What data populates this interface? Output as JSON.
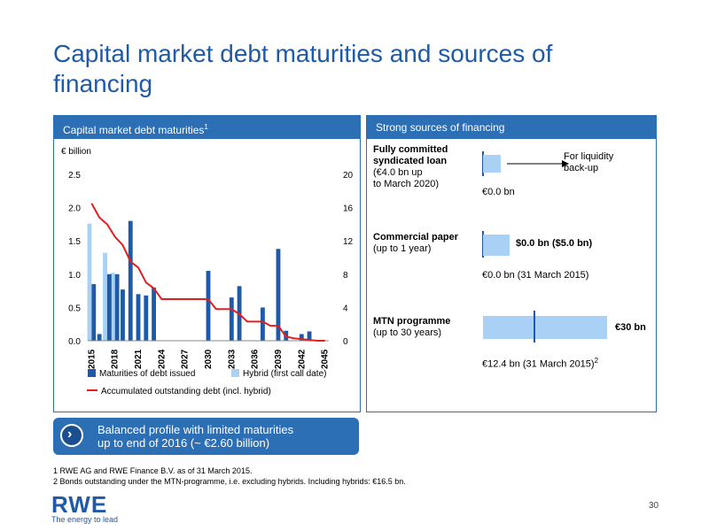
{
  "title": "Capital market debt maturities and sources of financing",
  "left_panel": {
    "header": "Capital market debt maturities",
    "header_sup": "1"
  },
  "right_panel": {
    "header": "Strong sources of financing",
    "items": [
      {
        "name": "Fully committed syndicated loan",
        "name_lines": [
          "Fully committed",
          "syndicated loan"
        ],
        "detail_lines": [
          "(€4.0 bn up",
          "to March 2020)"
        ],
        "note": "€0.0 bn",
        "arrow_label_lines": [
          "For liquidity",
          "back-up"
        ]
      },
      {
        "name": "Commercial paper",
        "name_lines": [
          "Commercial paper"
        ],
        "detail_lines": [
          "(up to 1 year)"
        ],
        "bar_label": "$0.0 bn ($5.0 bn)",
        "note": "€0.0 bn (31 March 2015)"
      },
      {
        "name": "MTN programme",
        "name_lines": [
          "MTN programme"
        ],
        "detail_lines": [
          "(up to 30 years)"
        ],
        "bar_label": "€30 bn",
        "note": "€12.4 bn (31 March 2015)",
        "note_sup": "2"
      }
    ]
  },
  "callout": {
    "lines": [
      "Balanced profile with limited maturities",
      "up to end of 2016 (~ €2.60 billion)"
    ]
  },
  "footnotes": [
    "1  RWE AG and RWE Finance B.V. as of 31 March 2015.",
    "2  Bonds outstanding under the MTN-programme, i.e. excluding hybrids. Including hybrids: €16.5 bn."
  ],
  "logo": {
    "text": "RWE",
    "tagline": "The energy to lead"
  },
  "page_number": "30",
  "colors": {
    "accent": "#2d6fb5",
    "debt_bar": "#1f5aa8",
    "hybrid_bar": "#a9d0f5",
    "line": "#e02020"
  },
  "chart_data": {
    "type": "bar",
    "unit_label": "€ billion",
    "x": [
      2015,
      2016,
      2017,
      2018,
      2019,
      2020,
      2021,
      2022,
      2023,
      2024,
      2025,
      2026,
      2027,
      2028,
      2029,
      2030,
      2031,
      2032,
      2033,
      2034,
      2035,
      2036,
      2037,
      2038,
      2039,
      2040,
      2041,
      2042,
      2043,
      2044,
      2045
    ],
    "x_tick_labels": [
      "2015",
      "2018",
      "2021",
      "2024",
      "2027",
      "2030",
      "2033",
      "2036",
      "2039",
      "2042",
      "2045"
    ],
    "x_tick_years": [
      2015,
      2018,
      2021,
      2024,
      2027,
      2030,
      2033,
      2036,
      2039,
      2042,
      2045
    ],
    "y_left": {
      "ticks": [
        "0.0",
        "0.5",
        "1.0",
        "1.5",
        "2.0",
        "2.5"
      ],
      "range": [
        0,
        2.5
      ]
    },
    "y_right": {
      "ticks": [
        "0",
        "4",
        "8",
        "12",
        "16",
        "20"
      ],
      "range": [
        0,
        20
      ]
    },
    "series": [
      {
        "name": "Maturities of debt issued",
        "type": "bar",
        "axis": "left",
        "values": [
          0.85,
          0.1,
          1.0,
          1.0,
          0.77,
          1.8,
          0.7,
          0.68,
          0.8,
          0,
          0,
          0,
          0,
          0,
          0,
          1.05,
          0,
          0,
          0.65,
          0.82,
          0,
          0,
          0.5,
          0,
          1.38,
          0.15,
          0,
          0.1,
          0.14,
          0,
          0
        ]
      },
      {
        "name": "Hybrid (first call date)",
        "type": "bar",
        "axis": "left",
        "values": [
          1.76,
          0,
          1.32,
          1.02,
          0,
          0,
          0,
          0,
          0,
          0,
          0,
          0,
          0,
          0,
          0,
          0,
          0,
          0,
          0,
          0,
          0,
          0,
          0,
          0,
          0,
          0,
          0,
          0,
          0,
          0,
          0
        ]
      },
      {
        "name": "Accumulated outstanding debt (incl. hybrid)",
        "type": "line",
        "axis": "right",
        "values": [
          16.5,
          14.8,
          14.0,
          12.5,
          11.5,
          9.5,
          8.8,
          7.0,
          6.3,
          5.0,
          5.0,
          5.0,
          5.0,
          5.0,
          5.0,
          5.0,
          3.8,
          3.8,
          3.8,
          3.2,
          2.3,
          2.3,
          2.3,
          1.8,
          1.8,
          0.5,
          0.3,
          0.2,
          0.1,
          0,
          0
        ]
      }
    ]
  }
}
